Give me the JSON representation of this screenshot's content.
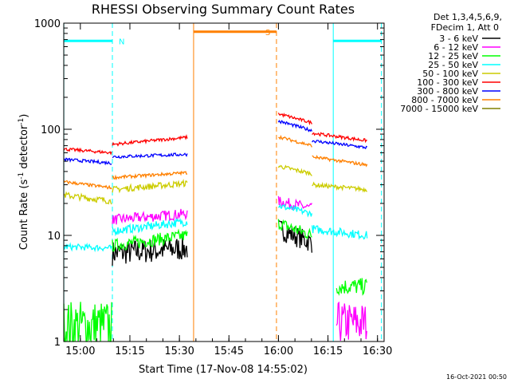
{
  "chart_data": {
    "type": "line",
    "title": "RHESSI Observing Summary Count Rates",
    "xlabel": "Start Time (17-Nov-08 14:55:02)",
    "ylabel_main": "Count Rate (s",
    "ylabel_sup1": "-1",
    "ylabel_mid": " detector",
    "ylabel_sup2": "-1",
    "ylabel_end": ")",
    "yscale": "log",
    "ylim": [
      1,
      1000
    ],
    "xlim_minutes": [
      14.97,
      112.0
    ],
    "x_ticks": [
      {
        "m": 20,
        "label": "15:00"
      },
      {
        "m": 35,
        "label": "15:15"
      },
      {
        "m": 50,
        "label": "15:30"
      },
      {
        "m": 65,
        "label": "15:45"
      },
      {
        "m": 80,
        "label": "16:00"
      },
      {
        "m": 95,
        "label": "16:15"
      },
      {
        "m": 110,
        "label": "16:30"
      }
    ],
    "y_ticks": [
      {
        "v": 1,
        "label": "1"
      },
      {
        "v": 10,
        "label": "10"
      },
      {
        "v": 100,
        "label": "100"
      },
      {
        "v": 1000,
        "label": "1000"
      }
    ],
    "legend_header_1": "Det 1,3,4,5,6,9,",
    "legend_header_2": "FDecim 1, Att 0",
    "series": [
      {
        "name": "3 - 6 keV",
        "color": "#000000",
        "segments": [
          {
            "x0": 29.7,
            "x1": 52.4,
            "v0": 6.8,
            "v1": 7.6,
            "noise": 0.12
          },
          {
            "x0": 80.0,
            "x1": 90.2,
            "v0": 11.5,
            "v1": 8.5,
            "noise": 0.1
          }
        ]
      },
      {
        "name": "6 - 12 keV",
        "color": "#ff00ff",
        "segments": [
          {
            "x0": 29.7,
            "x1": 52.4,
            "v0": 14.0,
            "v1": 16.0,
            "noise": 0.05
          },
          {
            "x0": 80.0,
            "x1": 90.2,
            "v0": 21.0,
            "v1": 18.0,
            "noise": 0.05
          },
          {
            "x0": 97.6,
            "x1": 107.0,
            "v0": 1.5,
            "v1": 1.5,
            "noise": 0.2
          }
        ]
      },
      {
        "name": "12 - 25 keV",
        "color": "#00ff00",
        "segments": [
          {
            "x0": 15.0,
            "x1": 29.7,
            "v0": 1.4,
            "v1": 1.4,
            "noise": 0.25
          },
          {
            "x0": 29.7,
            "x1": 52.4,
            "v0": 8.0,
            "v1": 10.0,
            "noise": 0.06
          },
          {
            "x0": 80.0,
            "x1": 90.2,
            "v0": 13.0,
            "v1": 10.0,
            "noise": 0.06
          },
          {
            "x0": 97.6,
            "x1": 107.0,
            "v0": 3.3,
            "v1": 3.3,
            "noise": 0.08
          }
        ]
      },
      {
        "name": "25 - 50 keV",
        "color": "#00ffff",
        "segments": [
          {
            "x0": 15.0,
            "x1": 29.7,
            "v0": 7.8,
            "v1": 7.6,
            "noise": 0.03
          },
          {
            "x0": 29.7,
            "x1": 52.4,
            "v0": 11.0,
            "v1": 13.5,
            "noise": 0.04
          },
          {
            "x0": 80.0,
            "x1": 90.2,
            "v0": 19.0,
            "v1": 16.0,
            "noise": 0.03
          },
          {
            "x0": 90.2,
            "x1": 107.0,
            "v0": 11.5,
            "v1": 10.0,
            "noise": 0.04
          }
        ]
      },
      {
        "name": "50 - 100 keV",
        "color": "#cccc00",
        "segments": [
          {
            "x0": 15.0,
            "x1": 29.7,
            "v0": 24.0,
            "v1": 21.0,
            "noise": 0.03
          },
          {
            "x0": 29.7,
            "x1": 52.4,
            "v0": 27.0,
            "v1": 31.0,
            "noise": 0.03
          },
          {
            "x0": 80.0,
            "x1": 90.2,
            "v0": 45.0,
            "v1": 38.0,
            "noise": 0.02
          },
          {
            "x0": 90.2,
            "x1": 107.0,
            "v0": 30.0,
            "v1": 27.0,
            "noise": 0.02
          }
        ]
      },
      {
        "name": "100 - 300 keV",
        "color": "#ff0000",
        "segments": [
          {
            "x0": 15.0,
            "x1": 29.7,
            "v0": 65.0,
            "v1": 60.0,
            "noise": 0.015
          },
          {
            "x0": 29.7,
            "x1": 52.4,
            "v0": 72.0,
            "v1": 84.0,
            "noise": 0.015
          },
          {
            "x0": 80.0,
            "x1": 90.2,
            "v0": 140.0,
            "v1": 115.0,
            "noise": 0.015
          },
          {
            "x0": 90.2,
            "x1": 107.0,
            "v0": 92.0,
            "v1": 78.0,
            "noise": 0.015
          }
        ]
      },
      {
        "name": "300 - 800 keV",
        "color": "#0000ff",
        "segments": [
          {
            "x0": 15.0,
            "x1": 29.7,
            "v0": 52.0,
            "v1": 48.0,
            "noise": 0.015
          },
          {
            "x0": 29.7,
            "x1": 52.4,
            "v0": 55.0,
            "v1": 58.0,
            "noise": 0.015
          },
          {
            "x0": 80.0,
            "x1": 90.2,
            "v0": 120.0,
            "v1": 97.0,
            "noise": 0.015
          },
          {
            "x0": 90.2,
            "x1": 107.0,
            "v0": 78.0,
            "v1": 67.0,
            "noise": 0.015
          }
        ]
      },
      {
        "name": "800 - 7000 keV",
        "color": "#ff8000",
        "segments": [
          {
            "x0": 15.0,
            "x1": 29.7,
            "v0": 32.0,
            "v1": 28.0,
            "noise": 0.015
          },
          {
            "x0": 29.7,
            "x1": 52.4,
            "v0": 35.0,
            "v1": 39.0,
            "noise": 0.015
          },
          {
            "x0": 80.0,
            "x1": 90.2,
            "v0": 85.0,
            "v1": 70.0,
            "noise": 0.015
          },
          {
            "x0": 90.2,
            "x1": 107.0,
            "v0": 55.0,
            "v1": 46.0,
            "noise": 0.015
          }
        ]
      },
      {
        "name": "7000 - 15000 keV",
        "color": "#808000",
        "segments": []
      }
    ],
    "intervals": [
      {
        "label": "N",
        "color": "#00ffff",
        "value": 680,
        "x0": 15.0,
        "x1": 29.7,
        "solid_start": 15.0,
        "dashed_end": 29.7
      },
      {
        "label": "",
        "color": "#00ffff",
        "value": 680,
        "x0": 96.6,
        "x1": 111.2,
        "solid_start": 96.6,
        "dashed_end": 111.2
      },
      {
        "label": "S",
        "color": "#ff8000",
        "value": 830,
        "x0": 54.3,
        "x1": 79.4,
        "solid_start": 54.3,
        "dashed_end": 79.4
      }
    ],
    "timestamp": "16-Oct-2021 00:50"
  }
}
